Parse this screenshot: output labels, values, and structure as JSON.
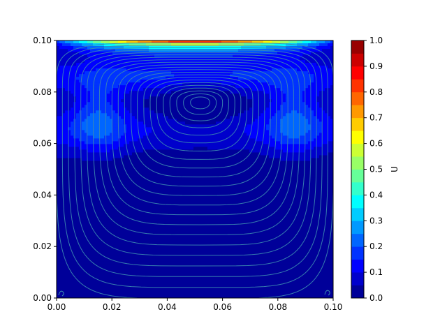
{
  "chart_data": {
    "type": "heatmap",
    "subtype": "filled contour with streamlines (lid-driven cavity flow)",
    "title": "",
    "xlabel": "",
    "ylabel": "",
    "xlim": [
      0.0,
      0.1
    ],
    "ylim": [
      0.0,
      0.1
    ],
    "x_ticks": [
      "0.00",
      "0.02",
      "0.04",
      "0.06",
      "0.08",
      "0.10"
    ],
    "y_ticks": [
      "0.00",
      "0.02",
      "0.04",
      "0.06",
      "0.08",
      "0.10"
    ],
    "colormap": "jet",
    "colorbar": {
      "label": "U",
      "range": [
        0.0,
        1.0
      ],
      "levels": [
        0.0,
        0.05,
        0.1,
        0.15,
        0.2,
        0.25,
        0.3,
        0.35,
        0.4,
        0.45,
        0.5,
        0.55,
        0.6,
        0.65,
        0.7,
        0.75,
        0.8,
        0.85,
        0.9,
        0.95,
        1.0
      ],
      "tick_labels": [
        "0.0",
        "0.1",
        "0.2",
        "0.3",
        "0.4",
        "0.5",
        "0.6",
        "0.7",
        "0.8",
        "0.9",
        "1.0"
      ]
    },
    "vortex_center": [
      0.052,
      0.076
    ],
    "lid_speed": 1.0,
    "streamline_color": "#3c8ab0",
    "grid": false
  }
}
